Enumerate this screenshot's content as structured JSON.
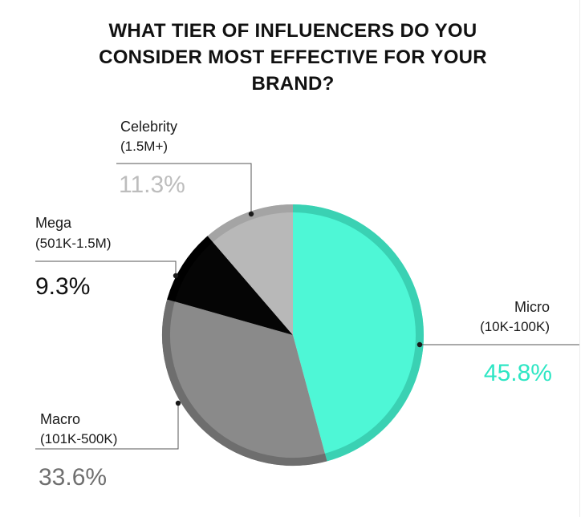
{
  "chart_data": {
    "type": "pie",
    "title_lines": [
      "WHAT TIER OF INFLUENCERS DO YOU",
      "CONSIDER MOST EFFECTIVE FOR YOUR",
      "BRAND?"
    ],
    "unit": "%",
    "slices": [
      {
        "name": "Micro",
        "range": "(10K-100K)",
        "value": 45.8,
        "label": "45.8%",
        "color": "#4ef7d6",
        "rim": "#3ad1b3",
        "label_color": "#2ee6c4"
      },
      {
        "name": "Macro",
        "range": "(101K-500K)",
        "value": 33.6,
        "label": "33.6%",
        "color": "#8a8a8a",
        "rim": "#6e6e6e",
        "label_color": "#6f6f6f"
      },
      {
        "name": "Mega",
        "range": "(501K-1.5M)",
        "value": 9.3,
        "label": "9.3%",
        "color": "#050505",
        "rim": "#000000",
        "label_color": "#111111"
      },
      {
        "name": "Celebrity",
        "range": "(1.5M+)",
        "value": 11.3,
        "label": "11.3%",
        "color": "#b8b8b8",
        "rim": "#a4a4a4",
        "label_color": "#bdbdbd"
      }
    ]
  }
}
